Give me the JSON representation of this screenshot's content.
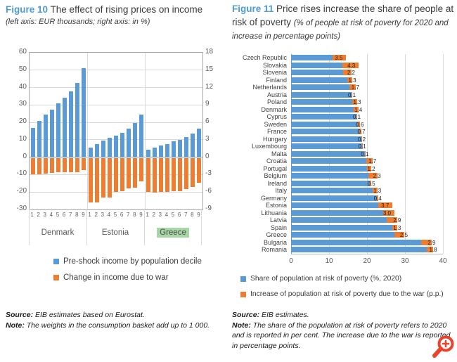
{
  "figure10": {
    "title_label": "Figure 10",
    "title_text": "The effect of rising prices on income",
    "subtitle": "(left axis: EUR thousands; right axis: in %)",
    "legend": [
      {
        "color": "#5b9bd5",
        "label": "Pre-shock income by population decile"
      },
      {
        "color": "#ed7d31",
        "label": "Change in income due to war"
      }
    ],
    "source_label": "Source:",
    "source_text": "EIB estimates based on Eurostat.",
    "note_label": "Note:",
    "note_text": "The weights in the consumption basket add up to 1 000.",
    "chart_data": {
      "type": "bar",
      "groups": [
        "Denmark",
        "Estonia",
        "Greece"
      ],
      "highlighted_group": "Greece",
      "decile_labels": [
        "1",
        "2",
        "3",
        "4",
        "5",
        "6",
        "7",
        "8",
        "9"
      ],
      "left_axis": {
        "label": "EUR thousands",
        "ticks": [
          60,
          50,
          40,
          30,
          20,
          10,
          0,
          -10,
          -20,
          -30
        ],
        "range": [
          -30,
          60
        ]
      },
      "right_axis": {
        "label": "in %",
        "ticks": [
          18,
          15,
          12,
          9,
          6,
          3,
          0,
          -3,
          -6,
          -9
        ],
        "range": [
          -9,
          18
        ]
      },
      "series": [
        {
          "name": "Pre-shock income by population decile",
          "color": "#5b9bd5",
          "values": {
            "Denmark": [
              17,
              21,
              24.5,
              27.5,
              31,
              34,
              38,
              42.5,
              51
            ],
            "Estonia": [
              5.7,
              7.5,
              9.5,
              11,
              12.5,
              14,
              16.5,
              19.5,
              24.5
            ],
            "Greece": [
              4.3,
              5.7,
              6.7,
              7.7,
              9,
              10,
              11.5,
              13.5,
              16.5
            ]
          }
        },
        {
          "name": "Change in income due to war",
          "color": "#ed7d31",
          "values": {
            "Denmark": [
              -10,
              -10,
              -9.5,
              -9,
              -8.5,
              -8.5,
              -8.5,
              -8.5,
              -7.5
            ],
            "Estonia": [
              -26,
              -26,
              -23,
              -23,
              -20,
              -19.5,
              -18,
              -17.5,
              -14
            ],
            "Greece": [
              -20,
              -20.5,
              -20,
              -20,
              -19.5,
              -19.5,
              -18.5,
              -17,
              -14.5
            ]
          }
        }
      ]
    }
  },
  "figure11": {
    "title_label": "Figure 11",
    "title_text": "Price rises increase the share of people at risk of poverty",
    "title_italic": "(% of people at risk of poverty for 2020 and increase in percentage points)",
    "legend": [
      {
        "color": "#5b9bd5",
        "label": "Share of population at risk of poverty (%, 2020)"
      },
      {
        "color": "#ed7d31",
        "label": "Increase of population at risk of poverty due to the war (p.p.)"
      }
    ],
    "source_label": "Source:",
    "source_text": "EIB estimates.",
    "note_label": "Note:",
    "note_text": "The share of the population at risk of poverty refers to 2020 and is reported in per cent. The increase due to the war is reported in percentage points.",
    "chart_data": {
      "type": "bar",
      "orientation": "horizontal",
      "categories": [
        "Czech Republic",
        "Slovakia",
        "Slovenia",
        "Finland",
        "Netherlands",
        "Austria",
        "Poland",
        "Denmark",
        "Cyprus",
        "Sweden",
        "France",
        "Hungary",
        "Luxembourg",
        "Malta",
        "Croatia",
        "Portugal",
        "Belgium",
        "Ireland",
        "Italy",
        "Germany",
        "Estonia",
        "Lithuania",
        "Latvia",
        "Spain",
        "Greece",
        "Bulgaria",
        "Romania"
      ],
      "xlim": [
        0,
        40
      ],
      "xticks": [
        0,
        10,
        20,
        30,
        40
      ],
      "series": [
        {
          "name": "Share of population at risk of poverty (%, 2020)",
          "color": "#5b9bd5",
          "values": [
            11.0,
            13.5,
            13.7,
            14.9,
            15.3,
            16.0,
            16.2,
            16.4,
            17.3,
            17.6,
            17.9,
            18.5,
            18.7,
            19.4,
            19.8,
            20.0,
            20.4,
            20.7,
            21.5,
            22.5,
            23.0,
            24.2,
            25.1,
            26.7,
            27.3,
            34.2,
            35.7
          ]
        },
        {
          "name": "Increase of population at risk of poverty due to the war (p.p.)",
          "color": "#ed7d31",
          "data_labels": true,
          "values": [
            3.5,
            4.3,
            2.2,
            1.3,
            1.7,
            0.1,
            1.3,
            1.4,
            0.1,
            0.6,
            0.7,
            0.2,
            0.1,
            0.1,
            1.7,
            1.2,
            2.3,
            0.5,
            1.3,
            0.4,
            3.7,
            3.0,
            2.9,
            1.3,
            2.5,
            2.9,
            1.8
          ]
        }
      ]
    }
  },
  "zoom_badge": {
    "name": "zoom-magnifier",
    "color": "#e8432d"
  }
}
